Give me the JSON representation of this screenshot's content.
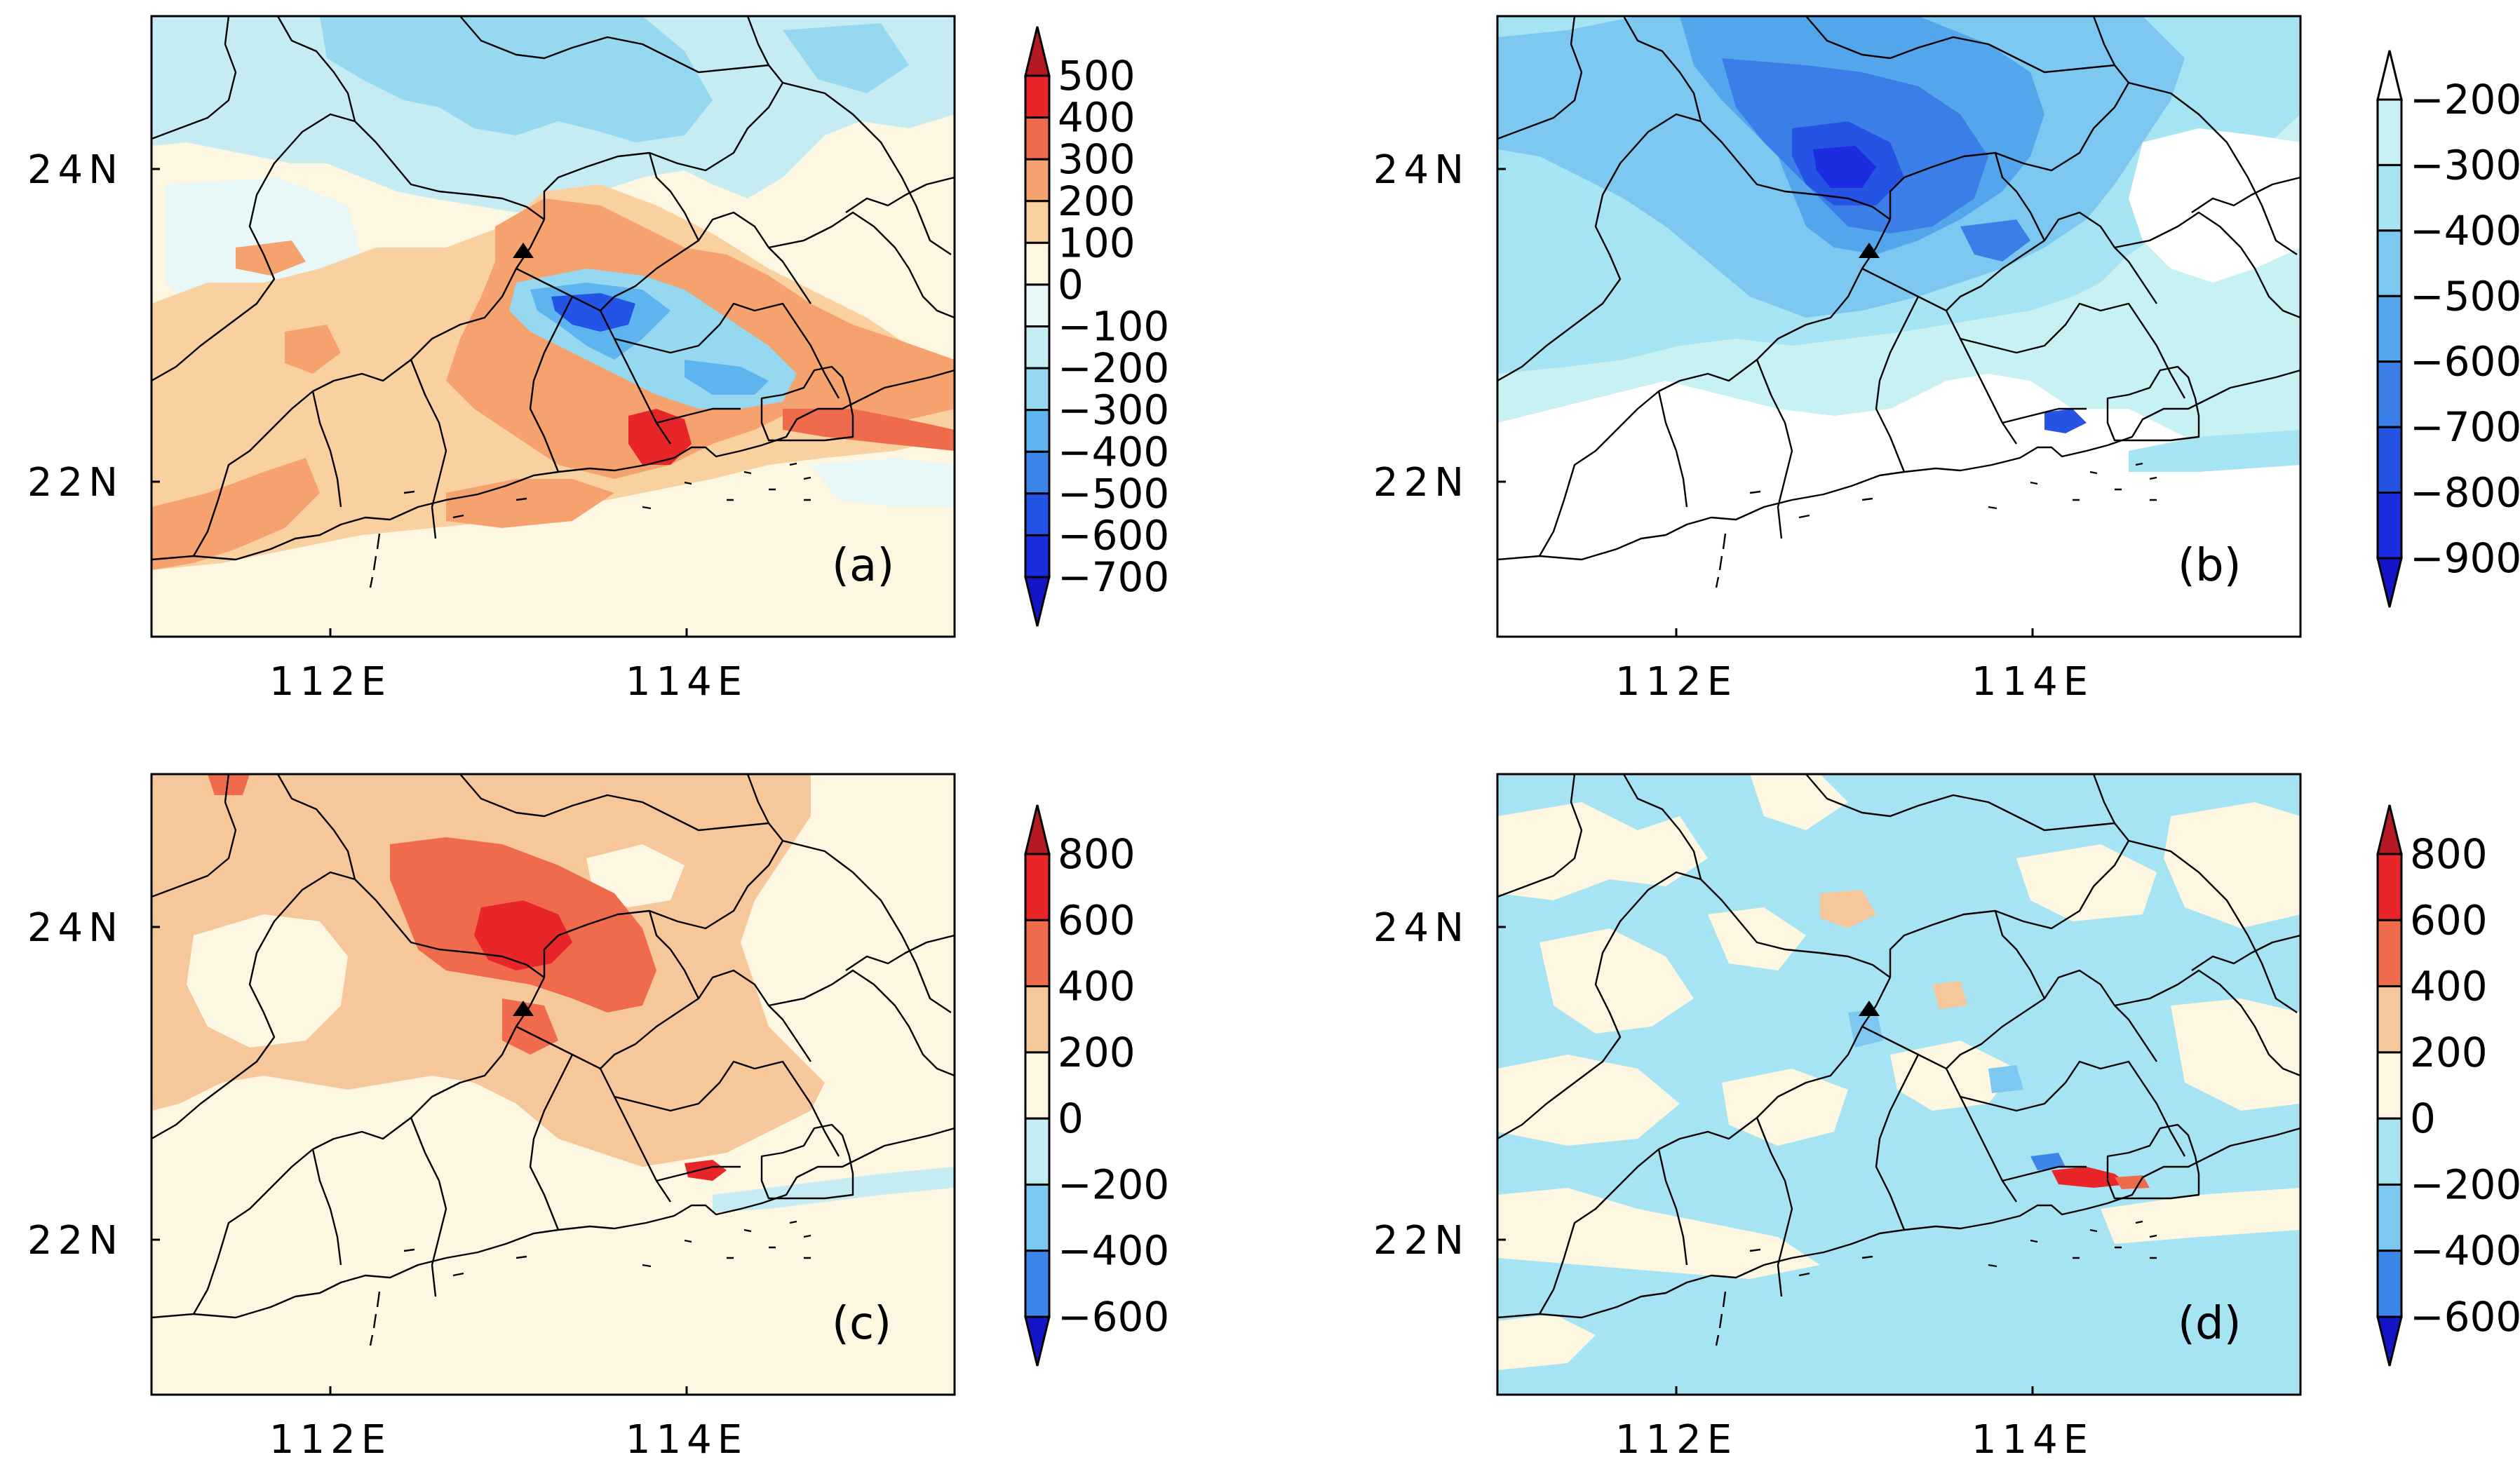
{
  "axes": {
    "x_ticks": [
      "112E",
      "114E"
    ],
    "y_ticks": [
      "24N",
      "22N"
    ]
  },
  "panels": [
    {
      "tag": "(a)",
      "colorbar": [
        "500",
        "400",
        "300",
        "200",
        "100",
        "0",
        "-100",
        "-200",
        "-300",
        "-400",
        "-500",
        "-600",
        "-700"
      ],
      "colors": [
        "#b51a22",
        "#e8262a",
        "#f06a4c",
        "#f5a26f",
        "#f9d1a1",
        "#fdf6e0",
        "#e8f8f8",
        "#c4ecf2",
        "#96d8f0",
        "#5eb4ee",
        "#3c86ea",
        "#2354e6",
        "#1a2ce0",
        "#1515c8"
      ],
      "bg": "#fdf6e0",
      "max_arrow": "#b51a22",
      "min_arrow": "#1515c8"
    },
    {
      "tag": "(b)",
      "colorbar": [
        "-200",
        "-300",
        "-400",
        "-500",
        "-600",
        "-700",
        "-800",
        "-900"
      ],
      "colors": [
        "#ffffff",
        "#c8f1f3",
        "#a6e4f3",
        "#7cc8f0",
        "#54a6ec",
        "#3b7ee8",
        "#2554e4",
        "#1c2ce0",
        "#1414c8"
      ],
      "bg": "#a6e4f3",
      "max_arrow": "#ffffff",
      "min_arrow": "#1414c8"
    },
    {
      "tag": "(c)",
      "colorbar": [
        "800",
        "600",
        "400",
        "200",
        "0",
        "-200",
        "-400",
        "-600"
      ],
      "colors": [
        "#b51a22",
        "#e8262a",
        "#f06a4c",
        "#f5c79a",
        "#fdf6e0",
        "#c4ecf2",
        "#7cc8f0",
        "#3c86ea",
        "#1515c8"
      ],
      "bg": "#fdf6e0",
      "max_arrow": "#b51a22",
      "min_arrow": "#1515c8"
    },
    {
      "tag": "(d)",
      "colorbar": [
        "800",
        "600",
        "400",
        "200",
        "0",
        "-200",
        "-400",
        "-600"
      ],
      "colors": [
        "#b51a22",
        "#e8262a",
        "#f06a4c",
        "#f5c79a",
        "#fdf6e0",
        "#a6e4f3",
        "#7cc8f0",
        "#3c86ea",
        "#1515c8"
      ],
      "bg": "#a6e4f3",
      "max_arrow": "#b51a22",
      "min_arrow": "#1515c8"
    }
  ]
}
